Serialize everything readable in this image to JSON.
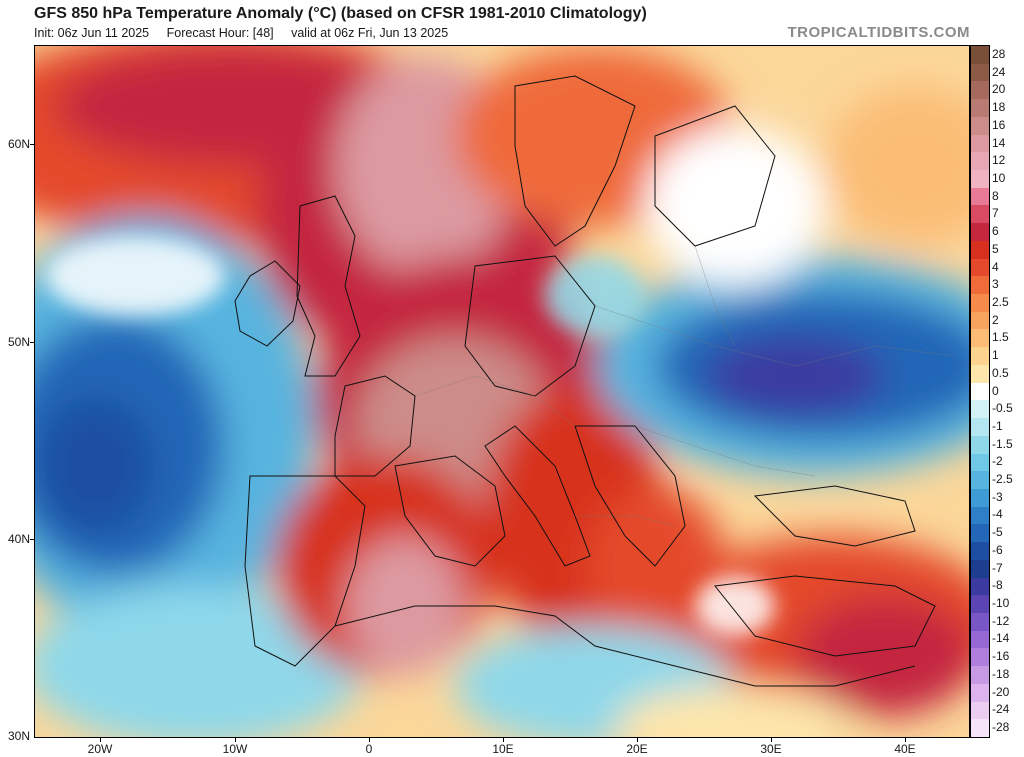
{
  "header": {
    "title": "GFS 850 hPa Temperature Anomaly (°C) (based on CFSR 1981-2010 Climatology)",
    "init": "Init: 06z Jun 11 2025",
    "forecast_hour": "Forecast Hour: [48]",
    "valid": "valid at 06z Fri, Jun 13 2025",
    "brand": "TROPICALTIDBITS.COM"
  },
  "axes": {
    "lat_labels": [
      "60N",
      "50N",
      "40N",
      "30N"
    ],
    "lon_labels": [
      "20W",
      "10W",
      "0",
      "10E",
      "20E",
      "30E",
      "40E"
    ]
  },
  "colorbar": {
    "labels": [
      "28",
      "24",
      "20",
      "18",
      "16",
      "14",
      "12",
      "10",
      "8",
      "7",
      "6",
      "5",
      "4",
      "3",
      "2.5",
      "2",
      "1.5",
      "1",
      "0.5",
      "0",
      "-0.5",
      "-1",
      "-1.5",
      "-2",
      "-2.5",
      "-3",
      "-4",
      "-5",
      "-6",
      "-7",
      "-8",
      "-10",
      "-12",
      "-14",
      "-16",
      "-18",
      "-20",
      "-24",
      "-28"
    ],
    "colors": [
      "#7a4f3a",
      "#8e5a48",
      "#a56a5c",
      "#b87b73",
      "#cc8c89",
      "#dc9aa0",
      "#e8a8b3",
      "#f0b3c2",
      "#e87a95",
      "#d94a63",
      "#c4283f",
      "#d7301f",
      "#e4492b",
      "#ef6b3a",
      "#f58b4b",
      "#f9a45e",
      "#fbbd76",
      "#fcd38e",
      "#fde6ab",
      "#ffffff",
      "#d2f2f6",
      "#b3e6f0",
      "#8ed8ea",
      "#6ec8e6",
      "#56b4df",
      "#3f9bd6",
      "#2f7fc8",
      "#2466b7",
      "#1c4fa3",
      "#1d3d8f",
      "#3b3aa0",
      "#5b45b5",
      "#7956c6",
      "#9668d3",
      "#b07fdd",
      "#c899e5",
      "#dcb3ec",
      "#ebcdf2",
      "#f5e4f7"
    ]
  }
}
